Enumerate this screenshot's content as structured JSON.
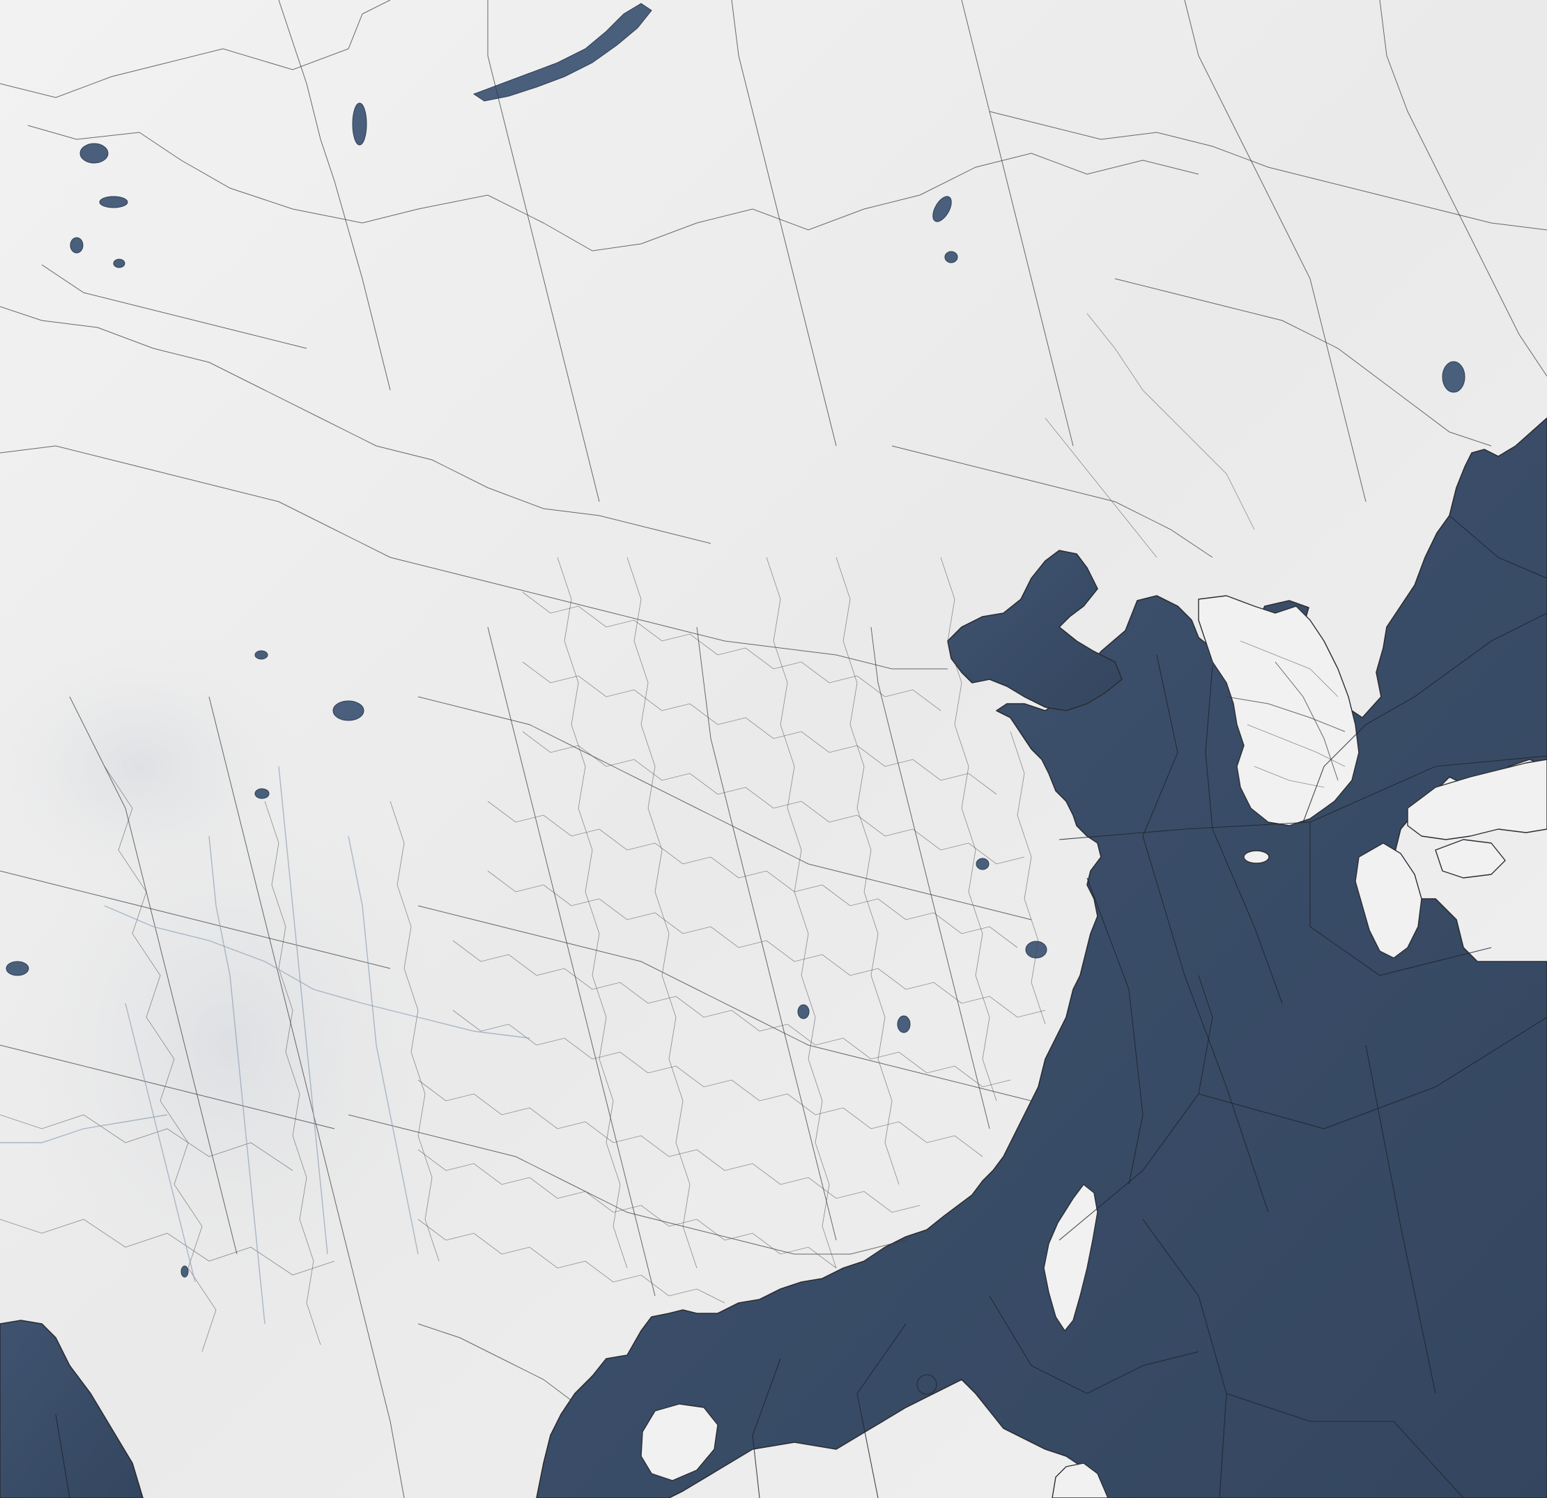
{
  "map": {
    "type": "shaded-relief administrative map",
    "colors": {
      "land": "#eeeeee",
      "water": "#3b4d68",
      "lakes": "#4a5f7c",
      "borders": "#3a3a3a",
      "rivers": "#8f9fb4"
    },
    "labels": []
  }
}
